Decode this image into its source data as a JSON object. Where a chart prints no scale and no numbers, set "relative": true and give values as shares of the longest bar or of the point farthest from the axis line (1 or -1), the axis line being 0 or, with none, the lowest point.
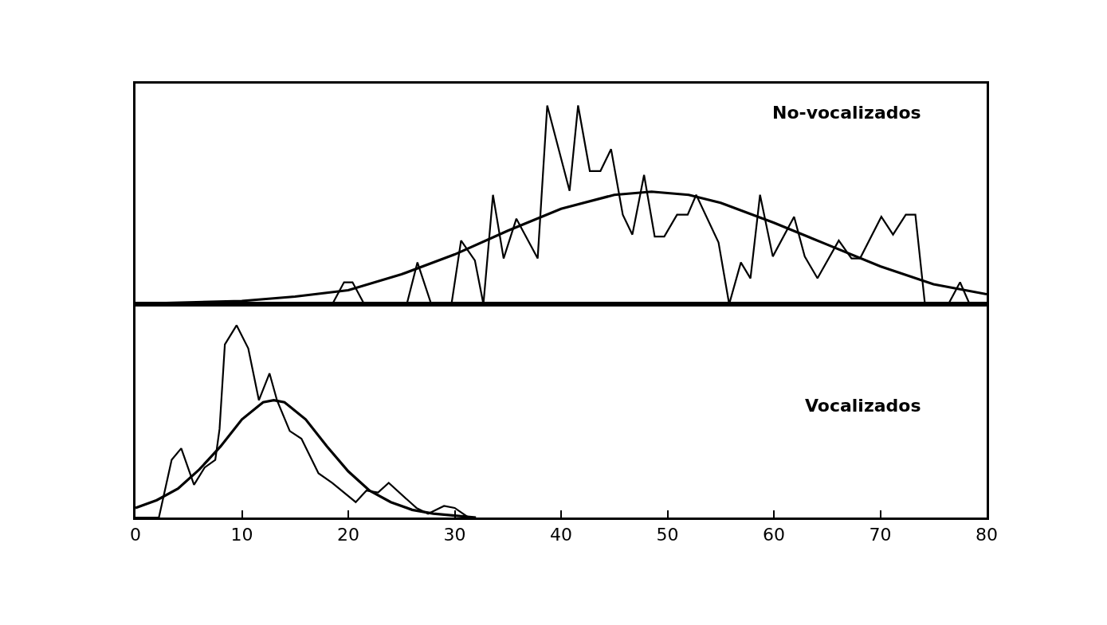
{
  "chart_data": [
    {
      "type": "line",
      "relative": true,
      "xlim": [
        0,
        80
      ],
      "xticks": [
        0,
        10,
        20,
        30,
        40,
        50,
        60,
        70,
        80
      ],
      "tick_labels": false,
      "annotations": [
        "No-vocalizados"
      ],
      "series": [
        {
          "color": "#000000",
          "x": [
            0,
            18.5,
            19.6,
            20.4,
            21.5,
            25.5,
            26.5,
            27.8,
            29.7,
            30.6,
            31.9,
            32.7,
            33.6,
            34.6,
            35.8,
            37.8,
            38.7,
            40.8,
            41.6,
            42.7,
            43.7,
            44.7,
            45.8,
            46.7,
            47.8,
            48.8,
            49.7,
            50.9,
            51.9,
            52.7,
            54.8,
            55.8,
            56.9,
            57.8,
            58.7,
            59.9,
            61.9,
            62.9,
            64.1,
            66.1,
            67.3,
            68.1,
            70.1,
            71.2,
            72.4,
            73.3,
            74.2,
            76.4,
            77.5,
            78.4,
            80
          ],
          "values": [
            0,
            0,
            0.11,
            0.11,
            0,
            0,
            0.21,
            0,
            0,
            0.32,
            0.22,
            0,
            0.55,
            0.23,
            0.43,
            0.23,
            1,
            0.57,
            1,
            0.67,
            0.67,
            0.78,
            0.45,
            0.35,
            0.65,
            0.34,
            0.34,
            0.45,
            0.45,
            0.55,
            0.31,
            0,
            0.21,
            0.13,
            0.55,
            0.24,
            0.44,
            0.24,
            0.13,
            0.32,
            0.23,
            0.23,
            0.44,
            0.35,
            0.45,
            0.45,
            0,
            0,
            0.11,
            0,
            0
          ]
        },
        {
          "color": "#000000",
          "x": [
            0,
            10,
            15,
            20,
            25,
            30,
            35,
            40,
            45,
            48.5,
            52,
            55,
            60,
            65,
            70,
            75,
            80
          ],
          "values": [
            0.002,
            0.016,
            0.038,
            0.07,
            0.15,
            0.25,
            0.37,
            0.48,
            0.55,
            0.566,
            0.55,
            0.51,
            0.41,
            0.3,
            0.19,
            0.1,
            0.05
          ]
        }
      ]
    },
    {
      "type": "line",
      "relative": true,
      "xlim": [
        0,
        80
      ],
      "xticks": [
        0,
        10,
        20,
        30,
        40,
        50,
        60,
        70,
        80
      ],
      "tick_labels": "x",
      "annotations": [
        "Vocalizados"
      ],
      "series": [
        {
          "color": "#000000",
          "x": [
            0,
            2.2,
            3.4,
            4.3,
            5.5,
            6.5,
            7.5,
            7.9,
            8.4,
            9.5,
            10.6,
            11.6,
            12.6,
            13.3,
            14.5,
            15.6,
            17.2,
            18.5,
            20.7,
            21.7,
            22.8,
            23.8,
            26.4,
            27.5,
            29,
            30,
            31.3
          ],
          "values": [
            0,
            0,
            0.3,
            0.36,
            0.17,
            0.26,
            0.3,
            0.46,
            0.9,
            1,
            0.88,
            0.61,
            0.75,
            0.61,
            0.45,
            0.41,
            0.23,
            0.18,
            0.08,
            0.14,
            0.13,
            0.18,
            0.05,
            0.02,
            0.06,
            0.05,
            0
          ]
        },
        {
          "color": "#000000",
          "x": [
            0,
            2,
            4,
            6,
            8,
            10,
            12,
            13,
            14,
            16,
            18,
            20,
            22,
            24,
            26,
            28,
            30,
            32
          ],
          "values": [
            0.05,
            0.09,
            0.15,
            0.25,
            0.37,
            0.51,
            0.6,
            0.61,
            0.6,
            0.51,
            0.37,
            0.24,
            0.14,
            0.08,
            0.04,
            0.02,
            0.01,
            0
          ]
        }
      ]
    }
  ]
}
